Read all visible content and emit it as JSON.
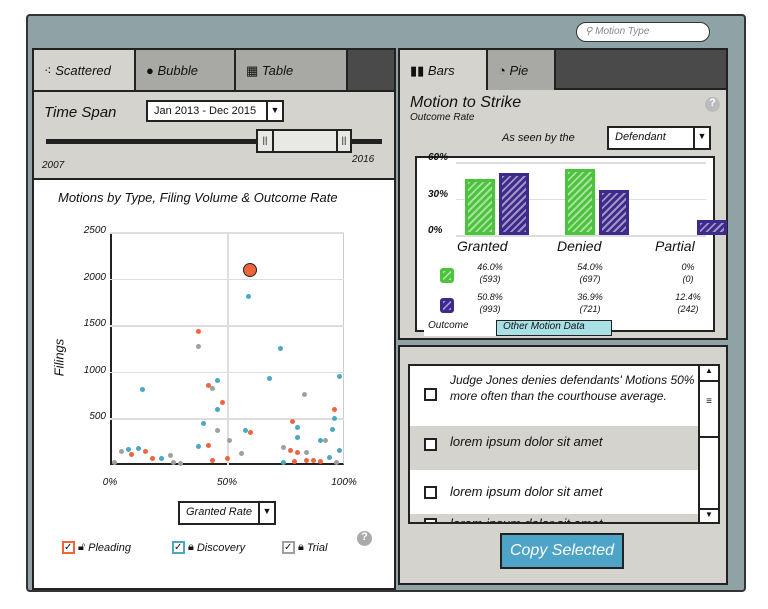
{
  "search": {
    "placeholder": "Motion Type",
    "icon": "search-icon"
  },
  "left": {
    "tabs": [
      {
        "label": "Scattered",
        "icon": "scatter-icon",
        "active": true
      },
      {
        "label": "Bubble",
        "icon": "bubble-icon"
      },
      {
        "label": "Table",
        "icon": "table-icon"
      }
    ],
    "time_span": {
      "label": "Time Span",
      "value": "Jan 2013 - Dec 2015",
      "start_label": "2007",
      "end_label": "2016"
    },
    "chart_title": "Motions by Type, Filing Volume & Outcome Rate",
    "x_selector": "Granted Rate",
    "legend": [
      {
        "label": "Pleading",
        "color": "#f0643c",
        "checked": true,
        "lock": "unlocked"
      },
      {
        "label": "Discovery",
        "color": "#4aa8c0",
        "checked": true,
        "lock": "locked"
      },
      {
        "label": "Trial",
        "color": "#a0a0a0",
        "checked": true,
        "lock": "locked"
      }
    ]
  },
  "right_top": {
    "tabs": [
      {
        "label": "Bars",
        "icon": "bar-chart-icon",
        "active": true
      },
      {
        "label": "Pie",
        "icon": "pie-chart-icon"
      }
    ],
    "title": "Motion to Strike",
    "subtitle": "Outcome Rate",
    "perspective_label": "As seen by the",
    "perspective_value": "Defendant",
    "bottom_tabs": [
      "Outcome",
      "Other Motion Data"
    ]
  },
  "right_bottom": {
    "items": [
      {
        "text": "Judge Jones denies defendants' Motions 50% more often than the courthouse average.",
        "checked": false
      },
      {
        "text": "lorem ipsum dolor sit amet",
        "checked": false
      },
      {
        "text": "lorem ipsum dolor sit amet",
        "checked": false
      },
      {
        "text": "lorem ipsum dolor sit amet",
        "checked": false
      }
    ],
    "copy_button": "Copy Selected"
  },
  "chart_data": [
    {
      "type": "scatter",
      "title": "Motions by Type, Filing Volume & Outcome Rate",
      "xlabel": "Granted Rate",
      "ylabel": "Filings",
      "xlim": [
        0,
        100
      ],
      "ylim": [
        0,
        2500
      ],
      "x_ticks": [
        "0%",
        "50%",
        "100%"
      ],
      "y_ticks": [
        "500",
        "1000",
        "1500",
        "2000",
        "2500"
      ],
      "grid": true,
      "series": [
        {
          "name": "Pleading",
          "color": "#f0643c",
          "points": [
            [
              60,
              2097
            ],
            [
              38,
              1431
            ],
            [
              42,
              852
            ],
            [
              48,
              669
            ],
            [
              96,
              600
            ],
            [
              60,
              345
            ],
            [
              78,
              472
            ],
            [
              42,
              207
            ],
            [
              9,
              114
            ],
            [
              15,
              145
            ],
            [
              18,
              72
            ],
            [
              44,
              52
            ],
            [
              50,
              69
            ],
            [
              77,
              155
            ],
            [
              80,
              131
            ],
            [
              79,
              34
            ],
            [
              84,
              45
            ],
            [
              87,
              52
            ],
            [
              90,
              34
            ]
          ]
        },
        {
          "name": "Discovery",
          "color": "#4aa8c0",
          "points": [
            [
              59,
              1810
            ],
            [
              73,
              1252
            ],
            [
              68,
              924
            ],
            [
              98,
              948
            ],
            [
              14,
              810
            ],
            [
              46,
              907
            ],
            [
              46,
              597
            ],
            [
              40,
              448
            ],
            [
              58,
              372
            ],
            [
              80,
              397
            ],
            [
              96,
              500
            ],
            [
              95,
              383
            ],
            [
              80,
              293
            ],
            [
              90,
              259
            ],
            [
              38,
              197
            ],
            [
              8,
              162
            ],
            [
              12,
              172
            ],
            [
              22,
              66
            ],
            [
              74,
              31
            ],
            [
              98,
              155
            ],
            [
              94,
              80
            ]
          ]
        },
        {
          "name": "Trial",
          "color": "#a0a0a0",
          "points": [
            [
              38,
              1269
            ],
            [
              44,
              824
            ],
            [
              83,
              759
            ],
            [
              46,
              369
            ],
            [
              51,
              259
            ],
            [
              92,
              259
            ],
            [
              5,
              141
            ],
            [
              26,
              107
            ],
            [
              27,
              24
            ],
            [
              30,
              17
            ],
            [
              56,
              128
            ],
            [
              74,
              183
            ],
            [
              84,
              134
            ],
            [
              2,
              24
            ],
            [
              97,
              30
            ]
          ]
        }
      ]
    },
    {
      "type": "bar",
      "categories": [
        "Granted",
        "Denied",
        "Partial"
      ],
      "ylim": [
        0,
        60
      ],
      "y_ticks": [
        "0%",
        "30%",
        "60%"
      ],
      "series": [
        {
          "color": "#4cc33c",
          "values": [
            46.0,
            54.0,
            0
          ],
          "labels": [
            "46.0%",
            "54.0%",
            "0%"
          ],
          "counts": [
            "(593)",
            "(697)",
            "(0)"
          ]
        },
        {
          "color": "#3d2a8a",
          "values": [
            50.8,
            36.9,
            12.4
          ],
          "labels": [
            "50.8%",
            "36.9%",
            "12.4%"
          ],
          "counts": [
            "(993)",
            "(721)",
            "(242)"
          ]
        }
      ]
    }
  ]
}
